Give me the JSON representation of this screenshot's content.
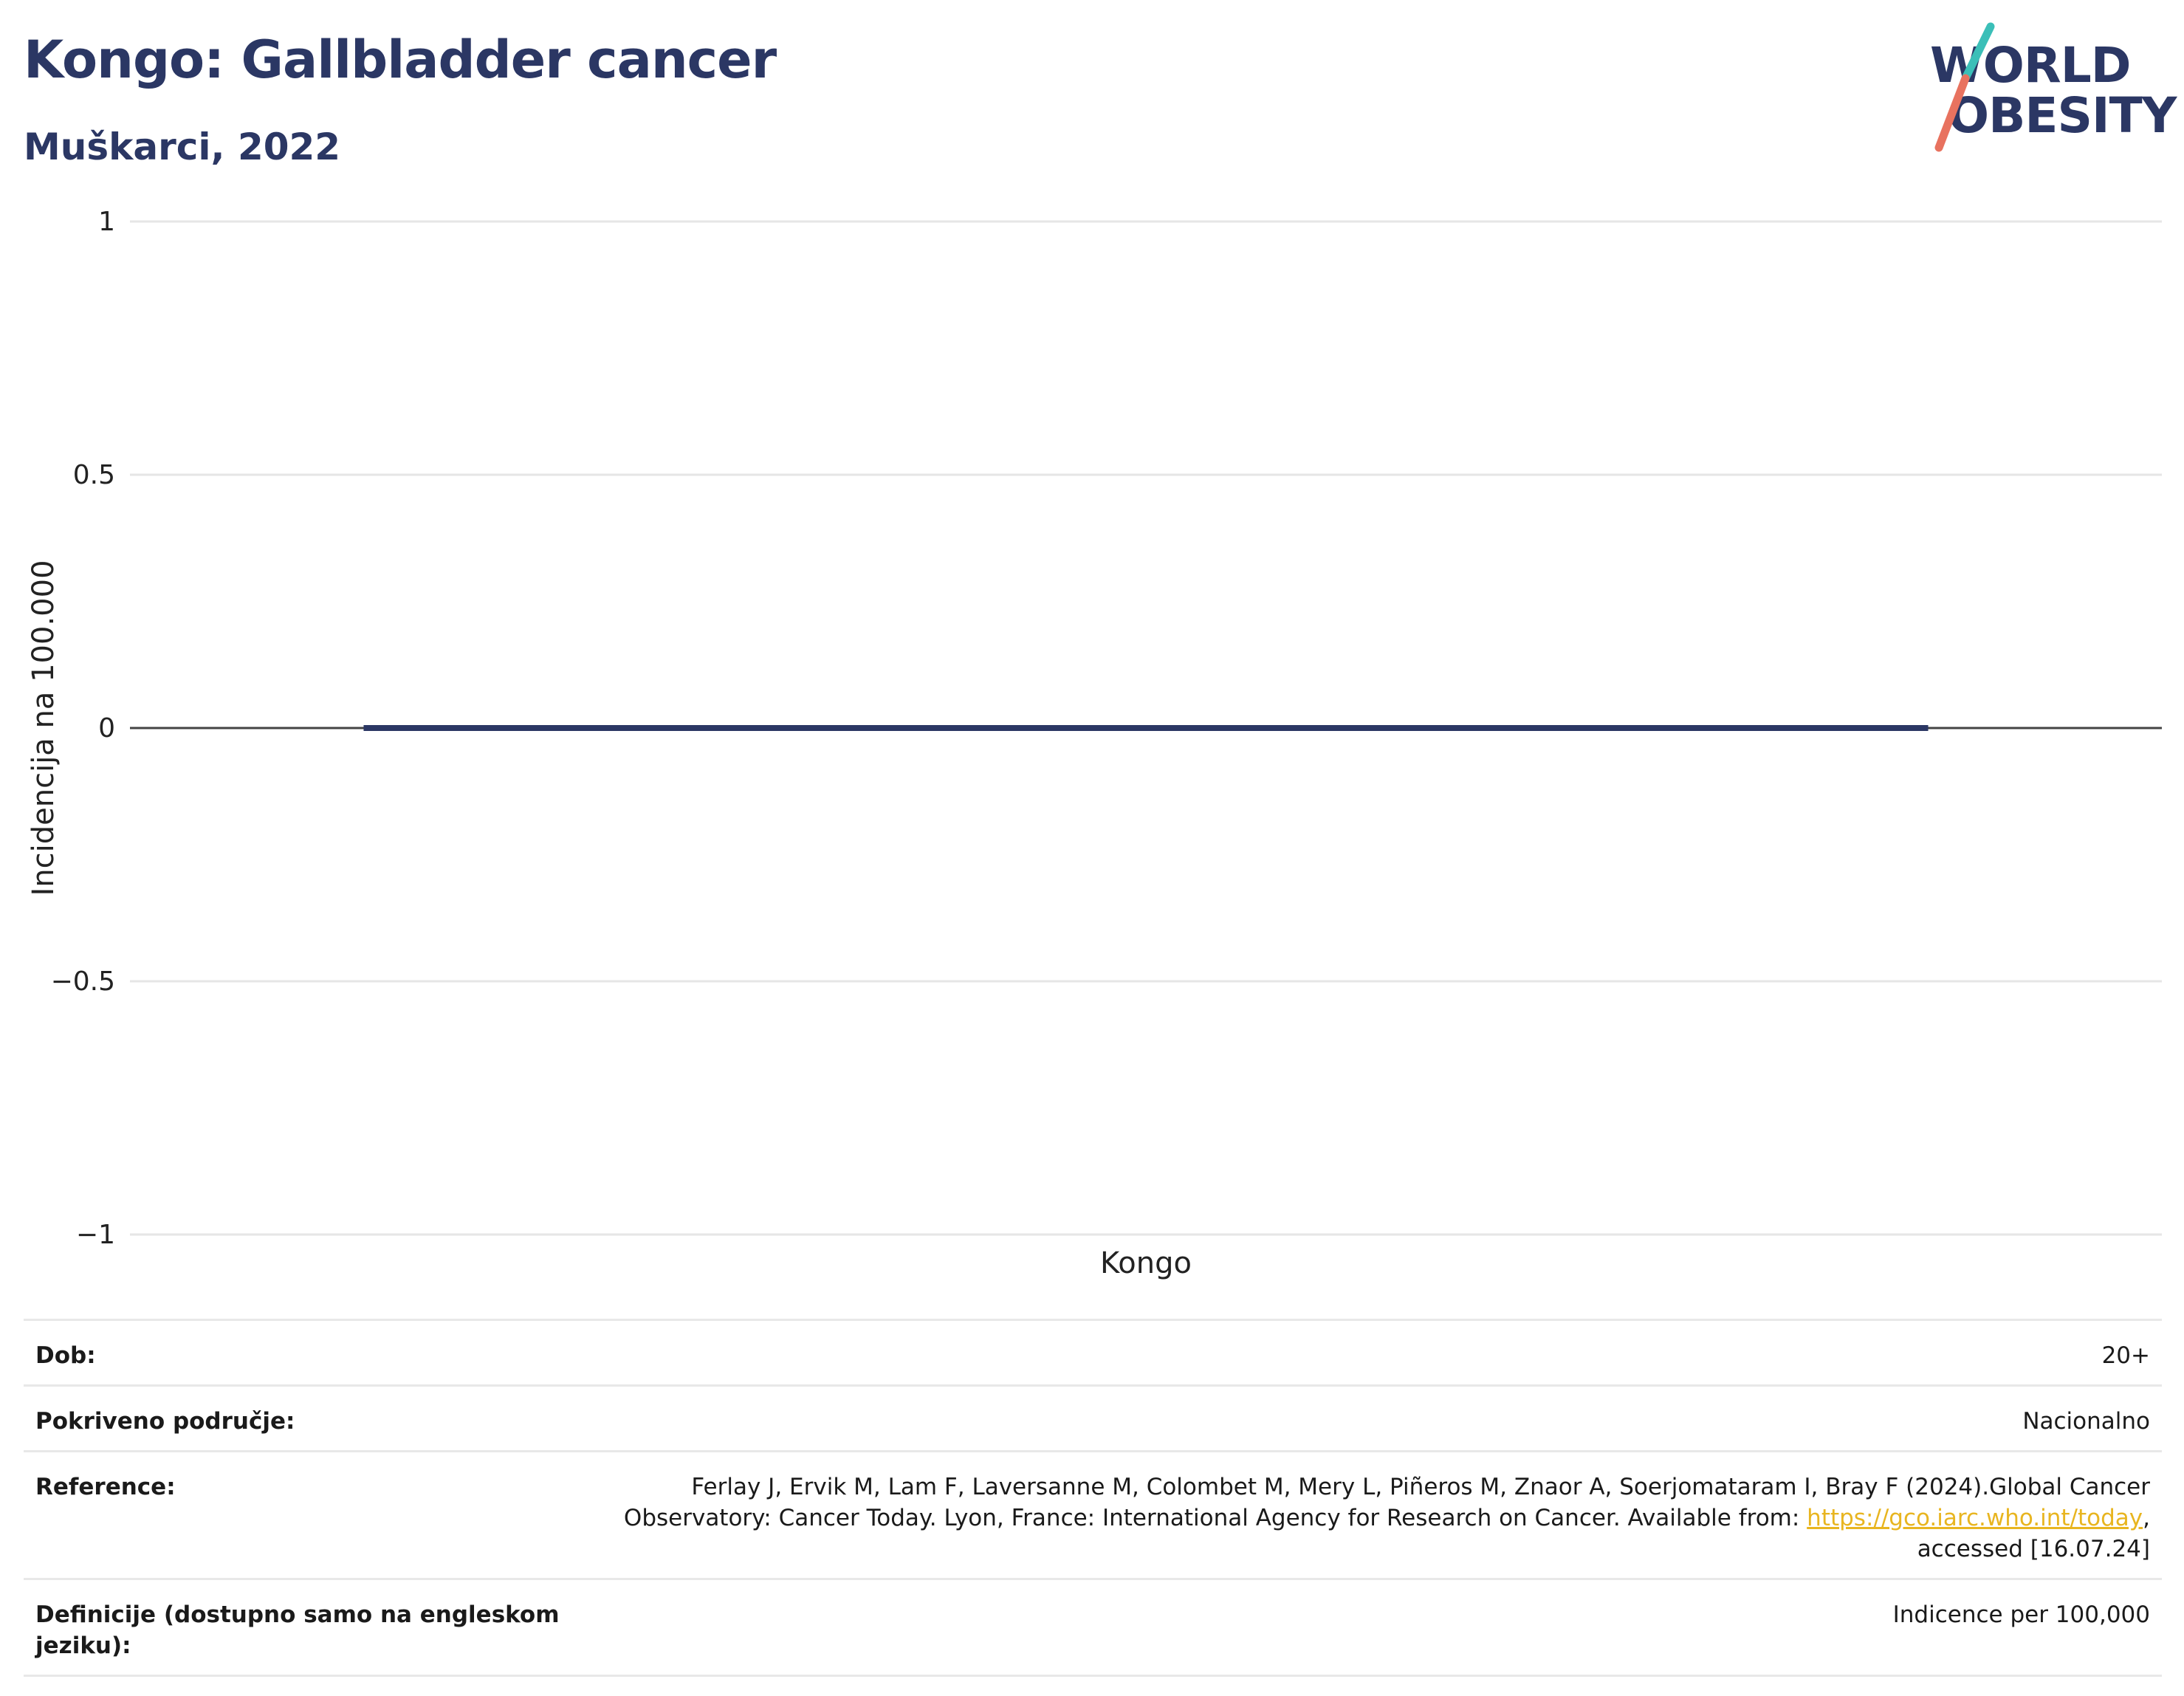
{
  "header": {
    "title": "Kongo: Gallbladder cancer",
    "subtitle": "Muškarci, 2022"
  },
  "logo": {
    "line1": "WORLD",
    "line2": "OBESITY",
    "accent_teal": "#3bbfb8",
    "accent_coral": "#e8725f"
  },
  "colors": {
    "brand": "#2b3764",
    "bar": "#2b3764",
    "gridline": "#e6e6e6",
    "zeroline": "#444444",
    "link": "#e8b520"
  },
  "chart_data": {
    "type": "bar",
    "categories": [
      "Kongo"
    ],
    "values": [
      0
    ],
    "ylabel": "Incidencija na 100.000",
    "xlabel": "",
    "ylim": [
      -1,
      1
    ],
    "yticks": [
      1,
      0.5,
      0,
      -0.5,
      -1
    ],
    "ytick_labels": [
      "1",
      "0.5",
      "0",
      "−0.5",
      "−1"
    ],
    "grid": true
  },
  "meta": {
    "rows": [
      {
        "label": "Dob:",
        "value": "20+"
      },
      {
        "label": "Pokriveno područje:",
        "value": "Nacionalno"
      },
      {
        "label": "Reference:",
        "value_pre": "Ferlay J, Ervik M, Lam F, Laversanne M, Colombet M, Mery L, Piñeros M, Znaor A, Soerjomataram I, Bray F (2024).Global Cancer Observatory: Cancer Today. Lyon, France: International Agency for Research on Cancer. Available from: ",
        "link": "https://gco.iarc.who.int/today",
        "value_post": ", accessed [16.07.24]"
      },
      {
        "label": "Definicije (dostupno samo na engleskom jeziku):",
        "value": "Indicence per 100,000"
      }
    ]
  }
}
